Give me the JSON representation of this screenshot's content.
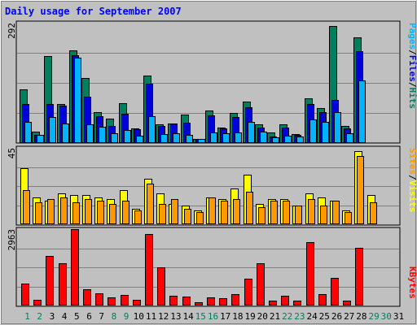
{
  "chart_data": {
    "type": "bar",
    "title": "Daily usage for September 2007",
    "x": [
      "1",
      "2",
      "3",
      "4",
      "5",
      "6",
      "7",
      "8",
      "9",
      "10",
      "11",
      "12",
      "13",
      "14",
      "15",
      "16",
      "17",
      "18",
      "19",
      "20",
      "21",
      "22",
      "23",
      "24",
      "25",
      "26",
      "27",
      "28",
      "29",
      "30",
      "31"
    ],
    "weekend_days": [
      "1",
      "2",
      "8",
      "9",
      "15",
      "16",
      "22",
      "23",
      "29",
      "30"
    ],
    "panels": [
      {
        "id": "hits",
        "ymax_label": "292",
        "ymax": 292,
        "right_labels": [
          "Pages",
          "/",
          "Files",
          "/",
          "Hits"
        ],
        "grid": true,
        "series": [
          {
            "name": "Hits",
            "color": "#007f5f",
            "values": [
              130,
              28,
              212,
              95,
              225,
              158,
              74,
              60,
              97,
              36,
              163,
              45,
              48,
              69,
              10,
              79,
              38,
              73,
              100,
              45,
              25,
              45,
              22,
              108,
              85,
              285,
              41,
              256,
              0,
              0,
              0
            ]
          },
          {
            "name": "Files",
            "color": "#0000d8",
            "values": [
              94,
              20,
              95,
              91,
              213,
              113,
              65,
              42,
              72,
              34,
              145,
              42,
              47,
              50,
              10,
              68,
              36,
              64,
              86,
              38,
              16,
              37,
              19,
              94,
              75,
              105,
              36,
              222,
              0,
              0,
              0
            ]
          },
          {
            "name": "Pages",
            "color": "#00b4ff",
            "values": [
              51,
              19,
              64,
              47,
              208,
              45,
              40,
              24,
              31,
              17,
              65,
              22,
              24,
              19,
              10,
              26,
              23,
              25,
              52,
              27,
              14,
              18,
              16,
              57,
              52,
              75,
              24,
              151,
              0,
              0,
              0
            ]
          }
        ]
      },
      {
        "id": "visits",
        "ymax_label": "45",
        "ymax": 45,
        "right_labels": [
          "Sites",
          "/",
          "Visits"
        ],
        "grid": true,
        "series": [
          {
            "name": "Visits",
            "color": "#ffff00",
            "values": [
              33,
              16,
              14,
              18,
              17,
              17,
              16,
              15,
              20,
              9,
              27,
              18,
              12,
              11,
              8,
              16,
              15,
              21,
              29,
              12,
              15,
              15,
              11,
              18,
              16,
              14,
              8,
              43,
              17,
              0,
              0
            ]
          },
          {
            "name": "Sites",
            "color": "#ff9900",
            "values": [
              20,
              13,
              15,
              16,
              13,
              15,
              14,
              12,
              14,
              8,
              24,
              12,
              15,
              9,
              7,
              16,
              14,
              15,
              19,
              10,
              14,
              14,
              11,
              15,
              11,
              14,
              7,
              40,
              13,
              0,
              0
            ]
          }
        ]
      },
      {
        "id": "kbytes",
        "ymax_label": "2963",
        "ymax": 2963,
        "right_labels": [
          "KBytes"
        ],
        "grid": true,
        "series": [
          {
            "name": "KBytes",
            "color": "#ff0000",
            "values": [
              861,
              212,
              1910,
              1630,
              2963,
              640,
              468,
              314,
              415,
              232,
              2772,
              1470,
              375,
              336,
              136,
              313,
              268,
              442,
              1053,
              1640,
              187,
              363,
              190,
              2460,
              445,
              1072,
              204,
              2234,
              0,
              0,
              0
            ]
          }
        ]
      }
    ]
  }
}
